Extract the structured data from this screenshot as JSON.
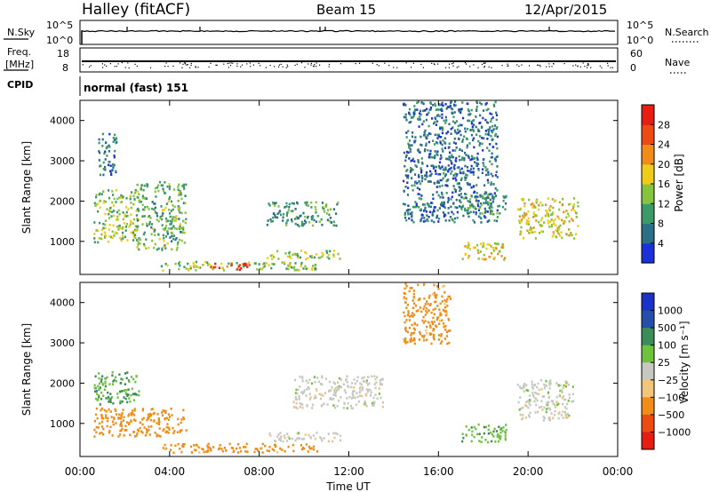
{
  "header": {
    "station": "Halley (fitACF)",
    "beam": "Beam 15",
    "date": "12/Apr/2015"
  },
  "top_panels": {
    "nsky_label": "N.Sky",
    "nsky_ticks": [
      "10^5",
      "10^0"
    ],
    "nsearch_label": "N.Search",
    "nsearch_ticks": [
      "10^5",
      "10^0"
    ],
    "freq_label": "Freq.",
    "freq_unit": "[MHz]",
    "freq_ticks": [
      "18",
      "8"
    ],
    "nave_label": "Nave",
    "nave_ticks": [
      "60",
      "0"
    ],
    "cpid_label": "CPID",
    "cpid_value": "normal (fast) 151"
  },
  "colors": {
    "power": [
      "#1c32d8",
      "#2a6f86",
      "#3c9968",
      "#86c43e",
      "#f0cc1a",
      "#f08c17",
      "#ee4a14",
      "#e51e11"
    ],
    "velocity": [
      "#e51e11",
      "#ee4a14",
      "#f08c17",
      "#f3c57a",
      "#c8c8c2",
      "#6fc23e",
      "#3a8c5a",
      "#244ea8",
      "#1b32c8"
    ]
  },
  "chart_data": [
    {
      "type": "heatmap",
      "quantity": "power",
      "ylabel": "Slant Range [km]",
      "yticks": [
        "4000",
        "3000",
        "2000",
        "1000"
      ],
      "ylim": [
        180,
        4500
      ],
      "xlim": [
        0,
        24
      ],
      "colorbar_label": "Power [dB]",
      "colorbar_ticks": [
        "28",
        "24",
        "20",
        "16",
        "12",
        "8",
        "4"
      ],
      "colorbar_range": [
        0,
        32
      ],
      "patches": [
        {
          "x": [
            0.6,
            2.6
          ],
          "y": [
            1000,
            2300
          ],
          "value": 14
        },
        {
          "x": [
            2.5,
            4.7
          ],
          "y": [
            800,
            2500
          ],
          "value": 12
        },
        {
          "x": [
            0.8,
            1.6
          ],
          "y": [
            2600,
            3700
          ],
          "value": 7
        },
        {
          "x": [
            3.6,
            10.6
          ],
          "y": [
            300,
            520
          ],
          "value": 14
        },
        {
          "x": [
            5.8,
            7.6
          ],
          "y": [
            320,
            480
          ],
          "value": 27
        },
        {
          "x": [
            8.2,
            11.6
          ],
          "y": [
            580,
            800
          ],
          "value": 15
        },
        {
          "x": [
            17.0,
            19.0
          ],
          "y": [
            560,
            1000
          ],
          "value": 18
        },
        {
          "x": [
            19.5,
            22.2
          ],
          "y": [
            1100,
            2100
          ],
          "value": 17
        },
        {
          "x": [
            8.3,
            11.5
          ],
          "y": [
            1400,
            2000
          ],
          "value": 9
        },
        {
          "x": [
            14.4,
            18.6
          ],
          "y": [
            1500,
            4500
          ],
          "value": 6
        },
        {
          "x": [
            16.8,
            19.0
          ],
          "y": [
            1700,
            2200
          ],
          "value": 9
        }
      ]
    },
    {
      "type": "heatmap",
      "quantity": "velocity",
      "xlabel": "Time UT",
      "xticks": [
        "00:00",
        "04:00",
        "08:00",
        "12:00",
        "16:00",
        "20:00",
        "00:00"
      ],
      "ylabel": "Slant Range [km]",
      "yticks": [
        "4000",
        "3000",
        "2000",
        "1000"
      ],
      "ylim": [
        180,
        4500
      ],
      "xlim": [
        0,
        24
      ],
      "colorbar_label": "Velocity [m s⁻¹]",
      "colorbar_ticks": [
        "1000",
        "500",
        "100",
        "25",
        "−25",
        "−100",
        "−500",
        "−1000"
      ],
      "patches": [
        {
          "x": [
            0.6,
            2.6
          ],
          "y": [
            1500,
            2300
          ],
          "value": 100
        },
        {
          "x": [
            0.6,
            4.7
          ],
          "y": [
            700,
            1400
          ],
          "value": -250
        },
        {
          "x": [
            3.6,
            10.6
          ],
          "y": [
            300,
            520
          ],
          "value": -150
        },
        {
          "x": [
            8.2,
            11.6
          ],
          "y": [
            580,
            800
          ],
          "value": 0
        },
        {
          "x": [
            9.5,
            13.5
          ],
          "y": [
            1400,
            2200
          ],
          "value": 0
        },
        {
          "x": [
            17.0,
            19.0
          ],
          "y": [
            560,
            1000
          ],
          "value": 80
        },
        {
          "x": [
            19.5,
            22.0
          ],
          "y": [
            1100,
            2100
          ],
          "value": 0
        },
        {
          "x": [
            14.4,
            16.5
          ],
          "y": [
            3000,
            4500
          ],
          "value": -150
        }
      ]
    }
  ]
}
